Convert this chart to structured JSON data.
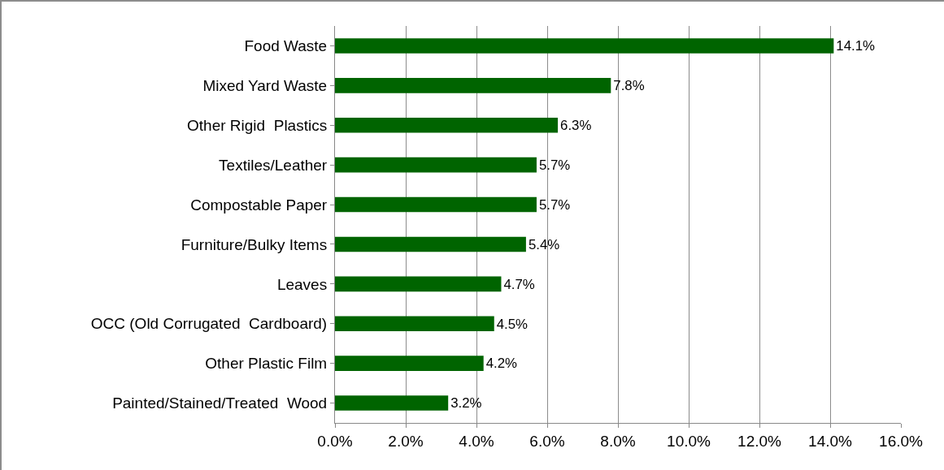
{
  "chart_data": {
    "type": "bar",
    "orientation": "horizontal",
    "categories": [
      "Food Waste",
      "Mixed Yard Waste",
      "Other Rigid  Plastics",
      "Textiles/Leather",
      "Compostable Paper",
      "Furniture/Bulky Items",
      "Leaves",
      "OCC (Old Corrugated  Cardboard)",
      "Other Plastic Film",
      "Painted/Stained/Treated  Wood"
    ],
    "values": [
      14.1,
      7.8,
      6.3,
      5.7,
      5.7,
      5.4,
      4.7,
      4.5,
      4.2,
      3.2
    ],
    "value_labels": [
      "14.1%",
      "7.8%",
      "6.3%",
      "5.7%",
      "5.7%",
      "5.4%",
      "4.7%",
      "4.5%",
      "4.2%",
      "3.2%"
    ],
    "color": "#006400",
    "xlim": [
      0,
      16
    ],
    "xticks": [
      {
        "value": 0,
        "label": "0.0%"
      },
      {
        "value": 2,
        "label": "2.0%"
      },
      {
        "value": 4,
        "label": "4.0%"
      },
      {
        "value": 6,
        "label": "6.0%"
      },
      {
        "value": 8,
        "label": "8.0%"
      },
      {
        "value": 10,
        "label": "10.0%"
      },
      {
        "value": 12,
        "label": "12.0%"
      },
      {
        "value": 14,
        "label": "14.0%"
      },
      {
        "value": 16,
        "label": "16.0%"
      }
    ],
    "grid": "x",
    "legend": false
  }
}
